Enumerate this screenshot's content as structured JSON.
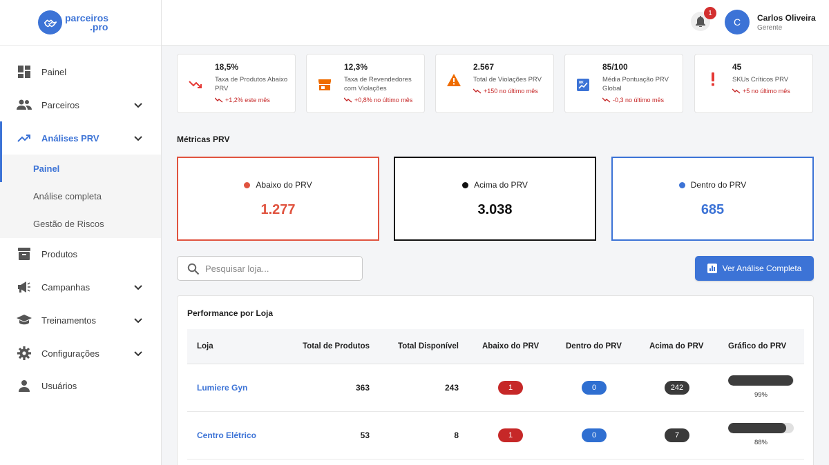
{
  "brand": {
    "line1": "parceiros",
    "line2": ".pro",
    "color": "#3c73d6"
  },
  "sidebar": {
    "items": [
      {
        "label": "Painel",
        "icon": "dashboard-icon",
        "expandable": false
      },
      {
        "label": "Parceiros",
        "icon": "people-icon",
        "expandable": true
      },
      {
        "label": "Análises PRV",
        "icon": "trending-up-icon",
        "expandable": true,
        "active": true
      },
      {
        "label": "Produtos",
        "icon": "archive-box-icon",
        "expandable": false
      },
      {
        "label": "Campanhas",
        "icon": "megaphone-icon",
        "expandable": true
      },
      {
        "label": "Treinamentos",
        "icon": "graduation-cap-icon",
        "expandable": true
      },
      {
        "label": "Configurações",
        "icon": "gear-icon",
        "expandable": true
      },
      {
        "label": "Usuários",
        "icon": "person-icon",
        "expandable": false
      }
    ],
    "subitems": [
      {
        "label": "Painel",
        "active": true
      },
      {
        "label": "Análise completa"
      },
      {
        "label": "Gestão de Riscos"
      }
    ]
  },
  "header": {
    "notification_count": "1",
    "user": {
      "initial": "C",
      "name": "Carlos Oliveira",
      "role": "Gerente"
    }
  },
  "kpis": [
    {
      "value": "18,5%",
      "label": "Taxa de Produtos Abaixo PRV",
      "trend": "+1,2% este mês",
      "icon": "trending-down-icon",
      "icon_color": "#e53935"
    },
    {
      "value": "12,3%",
      "label": "Taxa de Revendedores com Violações",
      "trend": "+0,8% no último mês",
      "icon": "store-icon",
      "icon_color": "#ef6c00"
    },
    {
      "value": "2.567",
      "label": "Total de Violações PRV",
      "trend": "+150 no último mês",
      "icon": "warning-icon",
      "icon_color": "#ef6c00"
    },
    {
      "value": "85/100",
      "label": "Média Pontuação PRV Global",
      "trend": "-0,3 no último mês",
      "icon": "score-icon",
      "icon_color": "#3c73d6"
    },
    {
      "value": "45",
      "label": "SKUs Críticos PRV",
      "trend": "+5 no último mês",
      "icon": "exclamation-icon",
      "icon_color": "#e53935"
    }
  ],
  "metrics_title": "Métricas PRV",
  "metrics": [
    {
      "label": "Abaixo do PRV",
      "value": "1.277",
      "color": "#e0533f"
    },
    {
      "label": "Acima do PRV",
      "value": "3.038",
      "color": "#111111"
    },
    {
      "label": "Dentro do PRV",
      "value": "685",
      "color": "#3c73d6"
    }
  ],
  "search": {
    "placeholder": "Pesquisar loja..."
  },
  "cta": {
    "label": "Ver Análise Completa"
  },
  "table": {
    "title": "Performance por Loja",
    "columns": [
      "Loja",
      "Total de Produtos",
      "Total Disponível",
      "Abaixo do PRV",
      "Dentro do PRV",
      "Acima do PRV",
      "Gráfico do PRV"
    ],
    "rows": [
      {
        "store": "Lumiere Gyn",
        "total": "363",
        "available": "243",
        "below": "1",
        "within": "0",
        "above": "242",
        "pct_label": "99%",
        "pct": 0.99
      },
      {
        "store": "Centro Elétrico",
        "total": "53",
        "available": "8",
        "below": "1",
        "within": "0",
        "above": "7",
        "pct_label": "88%",
        "pct": 0.88
      }
    ]
  },
  "pill_colors": {
    "below": "#c62828",
    "within": "#2f6fd1",
    "above": "#3a3a3a"
  }
}
